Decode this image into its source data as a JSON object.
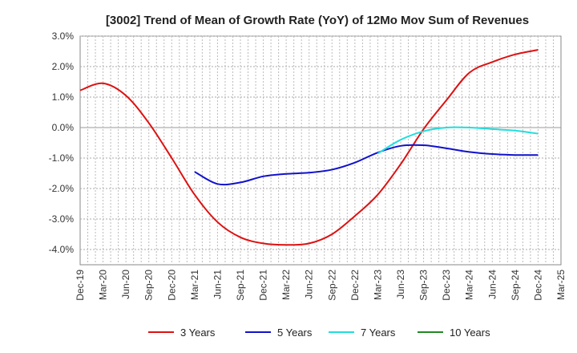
{
  "chart_data": {
    "type": "line",
    "title": "[3002]  Trend of Mean of Growth Rate (YoY) of 12Mo Mov Sum of Revenues",
    "xlabel": "",
    "ylabel": "",
    "ylim": [
      -4.5,
      3.0
    ],
    "y_ticks": [
      3.0,
      2.0,
      1.0,
      0.0,
      -1.0,
      -2.0,
      -3.0,
      -4.0
    ],
    "y_tick_labels": [
      "3.0%",
      "2.0%",
      "1.0%",
      "0.0%",
      "-1.0%",
      "-2.0%",
      "-3.0%",
      "-4.0%"
    ],
    "x_tick_labels": [
      "Dec-19",
      "Mar-20",
      "Jun-20",
      "Sep-20",
      "Dec-20",
      "Mar-21",
      "Jun-21",
      "Sep-21",
      "Dec-21",
      "Mar-22",
      "Jun-22",
      "Sep-22",
      "Dec-22",
      "Mar-23",
      "Jun-23",
      "Sep-23",
      "Dec-23",
      "Mar-24",
      "Jun-24",
      "Sep-24",
      "Dec-24",
      "Mar-25"
    ],
    "grid": true,
    "legend_position": "bottom",
    "series": [
      {
        "name": "3 Years",
        "color": "#dd1111",
        "values": [
          1.22,
          1.45,
          1.05,
          0.15,
          -1.0,
          -2.2,
          -3.1,
          -3.6,
          -3.8,
          -3.85,
          -3.8,
          -3.5,
          -2.9,
          -2.2,
          -1.2,
          -0.05,
          0.9,
          1.8,
          2.15,
          2.4,
          2.55,
          null
        ]
      },
      {
        "name": "5 Years",
        "color": "#1111cc",
        "values": [
          null,
          null,
          null,
          null,
          null,
          -1.45,
          -1.85,
          -1.8,
          -1.6,
          -1.52,
          -1.48,
          -1.38,
          -1.15,
          -0.82,
          -0.6,
          -0.58,
          -0.68,
          -0.8,
          -0.87,
          -0.9,
          -0.9,
          null
        ]
      },
      {
        "name": "7 Years",
        "color": "#22dddd",
        "values": [
          null,
          null,
          null,
          null,
          null,
          null,
          null,
          null,
          null,
          null,
          null,
          null,
          null,
          -0.85,
          -0.4,
          -0.12,
          0.0,
          0.0,
          -0.05,
          -0.1,
          -0.2,
          null
        ]
      },
      {
        "name": "10 Years",
        "color": "#228822",
        "values": [
          null,
          null,
          null,
          null,
          null,
          null,
          null,
          null,
          null,
          null,
          null,
          null,
          null,
          null,
          null,
          null,
          null,
          null,
          null,
          null,
          null,
          null
        ]
      }
    ]
  }
}
